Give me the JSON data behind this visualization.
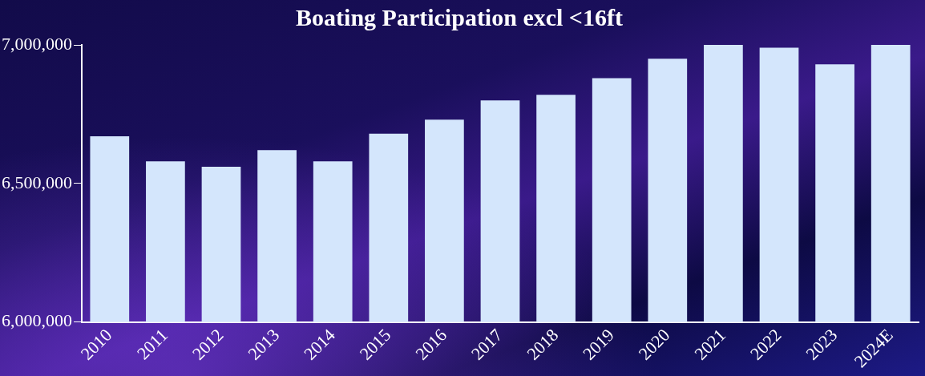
{
  "chart_data": {
    "type": "bar",
    "title": "Boating Participation excl <16ft",
    "categories": [
      "2010",
      "2011",
      "2012",
      "2013",
      "2014",
      "2015",
      "2016",
      "2017",
      "2018",
      "2019",
      "2020",
      "2021",
      "2022",
      "2023",
      "2024E"
    ],
    "values": [
      6670000,
      6580000,
      6560000,
      6620000,
      6580000,
      6680000,
      6730000,
      6800000,
      6820000,
      6880000,
      6950000,
      7000000,
      6990000,
      6930000,
      7000000
    ],
    "color": "#d4e6fc",
    "ylim": [
      6000000,
      7000000
    ],
    "yticks": [
      {
        "value": 6000000,
        "label": "6,000,000"
      },
      {
        "value": 6500000,
        "label": "6,500,000"
      },
      {
        "value": 7000000,
        "label": "7,000,000"
      }
    ],
    "grid": false,
    "legend": false
  }
}
